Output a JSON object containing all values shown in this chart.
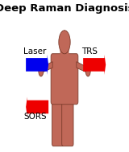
{
  "title": "Deep Raman Diagnosis",
  "title_fontsize": 9.5,
  "title_fontweight": "bold",
  "title_color": "#000000",
  "bg_color": "#ffffff",
  "laser_label": "Laser",
  "laser_arrow_color": "#0000ee",
  "trs_label": "TRS",
  "trs_arrow_color": "#ee0000",
  "sors_label": "SORS",
  "sors_arrow_color": "#ee0000",
  "body_color": "#c06858",
  "body_outline": "#7a3a2a",
  "figwidth": 1.6,
  "figheight": 1.89,
  "dpi": 100
}
